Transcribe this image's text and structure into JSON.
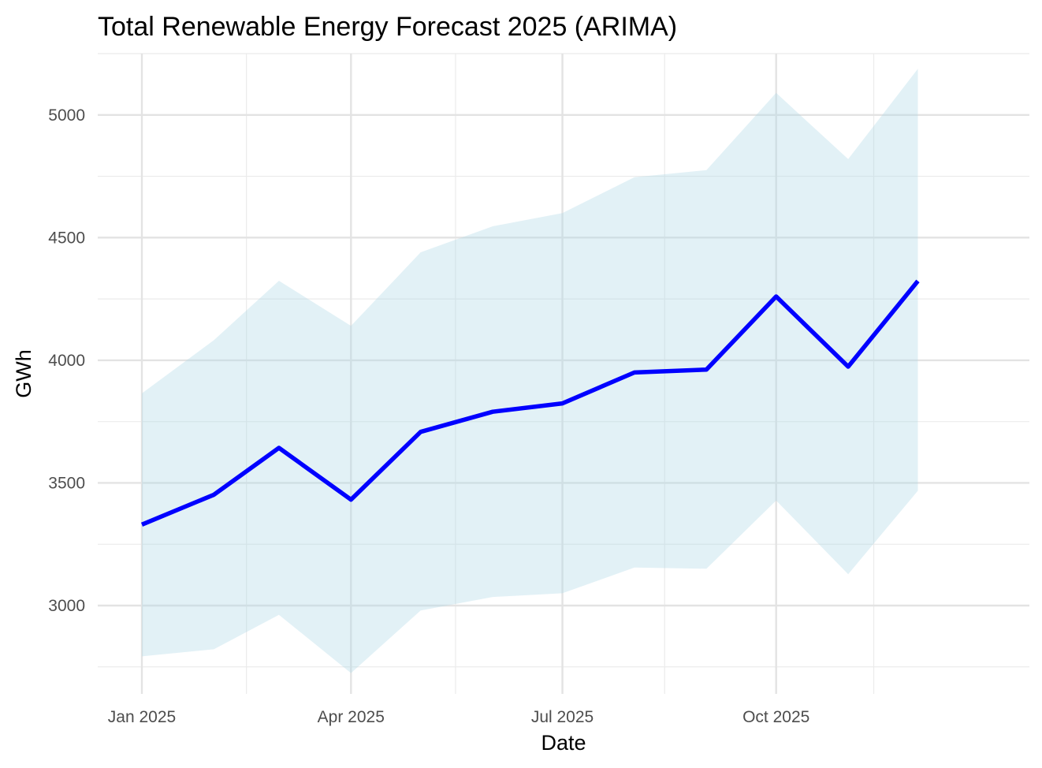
{
  "chart_data": {
    "type": "line",
    "title": "Total Renewable Energy Forecast 2025 (ARIMA)",
    "xlabel": "Date",
    "ylabel": "GWh",
    "x_tick_labels": [
      {
        "label": "Jan 2025",
        "date": "2025-01-01"
      },
      {
        "label": "Apr 2025",
        "date": "2025-04-01"
      },
      {
        "label": "Jul 2025",
        "date": "2025-07-01"
      },
      {
        "label": "Oct 2025",
        "date": "2025-10-01"
      }
    ],
    "y_ticks": [
      3000,
      3500,
      4000,
      4500,
      5000
    ],
    "ylim": [
      2640,
      5250
    ],
    "xlim": [
      "2024-12-13",
      "2026-01-18"
    ],
    "grid": true,
    "series": [
      {
        "type": "line",
        "color": "#0000ff",
        "points": [
          {
            "x": "2025-01-01",
            "y": 3330
          },
          {
            "x": "2025-02-01",
            "y": 3452
          },
          {
            "x": "2025-03-01",
            "y": 3643
          },
          {
            "x": "2025-04-01",
            "y": 3432
          },
          {
            "x": "2025-05-01",
            "y": 3708
          },
          {
            "x": "2025-06-01",
            "y": 3790
          },
          {
            "x": "2025-07-01",
            "y": 3824
          },
          {
            "x": "2025-08-01",
            "y": 3950
          },
          {
            "x": "2025-09-01",
            "y": 3962
          },
          {
            "x": "2025-10-01",
            "y": 4260
          },
          {
            "x": "2025-11-01",
            "y": 3974
          },
          {
            "x": "2025-12-01",
            "y": 4323
          }
        ]
      },
      {
        "type": "interval",
        "color": "#add8e6",
        "opacity": 0.35,
        "points": [
          {
            "x": "2025-01-01",
            "lo": 2793,
            "hi": 3865
          },
          {
            "x": "2025-02-01",
            "lo": 2822,
            "hi": 4082
          },
          {
            "x": "2025-03-01",
            "lo": 2962,
            "hi": 4324
          },
          {
            "x": "2025-04-01",
            "lo": 2725,
            "hi": 4140
          },
          {
            "x": "2025-05-01",
            "lo": 2980,
            "hi": 4440
          },
          {
            "x": "2025-06-01",
            "lo": 3035,
            "hi": 4546
          },
          {
            "x": "2025-07-01",
            "lo": 3050,
            "hi": 4600
          },
          {
            "x": "2025-08-01",
            "lo": 3155,
            "hi": 4746
          },
          {
            "x": "2025-09-01",
            "lo": 3150,
            "hi": 4775
          },
          {
            "x": "2025-10-01",
            "lo": 3428,
            "hi": 5090
          },
          {
            "x": "2025-11-01",
            "lo": 3128,
            "hi": 4820
          },
          {
            "x": "2025-12-01",
            "lo": 3468,
            "hi": 5188
          }
        ]
      }
    ]
  }
}
